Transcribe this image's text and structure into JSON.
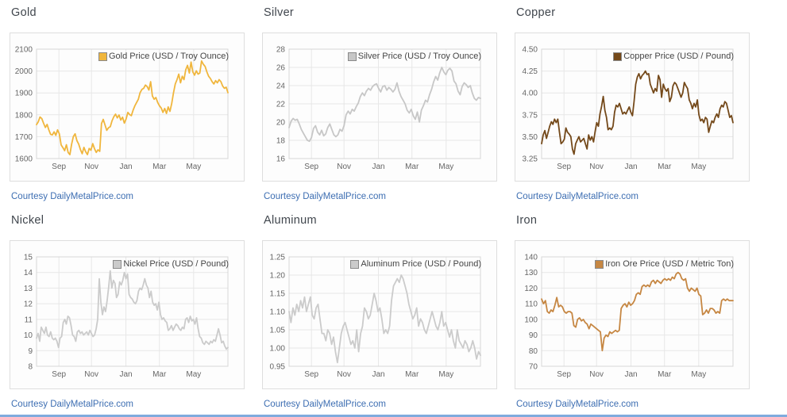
{
  "page": {
    "courtesy_label": "Courtesy DailyMetalPrice.com",
    "link_color": "#3d6eb2",
    "footer_bar_color": "#7fabdd"
  },
  "chart_data": [
    {
      "type": "line",
      "title": "Gold",
      "legend": "Gold Price (USD / Troy Ounce)",
      "color": "#f0b63d",
      "ylim": [
        1600,
        2100
      ],
      "ytick_labels": [
        "2100",
        "2000",
        "1900",
        "1800",
        "1700",
        "1600"
      ],
      "xticks": [
        "Sep",
        "Nov",
        "Jan",
        "Mar",
        "May"
      ],
      "xtick_pos": [
        0.117,
        0.287,
        0.467,
        0.642,
        0.821
      ],
      "grid": true,
      "legend_position": "top-right",
      "values": [
        1755,
        1768,
        1790,
        1783,
        1762,
        1742,
        1756,
        1731,
        1711,
        1708,
        1722,
        1706,
        1731,
        1713,
        1662,
        1650,
        1636,
        1663,
        1628,
        1618,
        1666,
        1701,
        1713,
        1681,
        1666,
        1641,
        1622,
        1651,
        1631,
        1618,
        1646,
        1638,
        1668,
        1645,
        1628,
        1640,
        1633,
        1760,
        1779,
        1754,
        1729,
        1741,
        1746,
        1773,
        1791,
        1803,
        1786,
        1799,
        1776,
        1789,
        1762,
        1781,
        1811,
        1801,
        1796,
        1821,
        1841,
        1856,
        1871,
        1901,
        1916,
        1921,
        1936,
        1929,
        1913,
        1951,
        1886,
        1871,
        1879,
        1856,
        1841,
        1831,
        1811,
        1829,
        1806,
        1836,
        1816,
        1851,
        1901,
        1941,
        1961,
        1986,
        1946,
        1976,
        1961,
        2006,
        2026,
        1991,
        2041,
        1996,
        1981,
        2001,
        1986,
        1991,
        2046,
        2031,
        2021,
        1996,
        1976,
        1966,
        1951,
        1941,
        1956,
        1946,
        1961,
        1951,
        1931,
        1921,
        1926,
        1901
      ]
    },
    {
      "type": "line",
      "title": "Silver",
      "legend": "Silver Price (USD / Troy Ounce)",
      "color": "#c7c7c7",
      "ylim": [
        16,
        28
      ],
      "ytick_labels": [
        "28",
        "26",
        "24",
        "22",
        "20",
        "18",
        "16"
      ],
      "xticks": [
        "Sep",
        "Nov",
        "Jan",
        "Mar",
        "May"
      ],
      "xtick_pos": [
        0.117,
        0.287,
        0.467,
        0.642,
        0.821
      ],
      "grid": true,
      "legend_position": "top-right",
      "values": [
        19.4,
        20.1,
        20.4,
        20.2,
        20.3,
        19.8,
        19.2,
        18.8,
        18.4,
        18.0,
        17.9,
        18.3,
        19.3,
        19.6,
        18.9,
        18.6,
        19.1,
        18.5,
        18.7,
        19.4,
        19.8,
        19.2,
        18.6,
        18.4,
        18.6,
        19.2,
        19.0,
        19.6,
        20.8,
        21.2,
        20.9,
        21.4,
        21.2,
        21.7,
        22.1,
        22.8,
        23.2,
        22.9,
        23.4,
        23.7,
        23.5,
        23.9,
        24.1,
        24.2,
        23.7,
        23.3,
        23.9,
        24.0,
        23.5,
        23.8,
        23.6,
        23.3,
        23.6,
        24.3,
        23.4,
        22.8,
        22.4,
        22.0,
        21.3,
        21.0,
        21.4,
        20.7,
        20.3,
        21.1,
        20.0,
        21.3,
        21.8,
        22.4,
        22.2,
        23.0,
        23.6,
        24.4,
        25.0,
        24.6,
        25.4,
        26.0,
        25.5,
        25.2,
        25.7,
        25.9,
        25.6,
        24.5,
        24.2,
        23.4,
        23.0,
        23.9,
        24.3,
        24.1,
        23.8,
        24.0,
        23.2,
        22.6,
        22.4,
        22.7,
        22.6
      ]
    },
    {
      "type": "line",
      "title": "Copper",
      "legend": "Copper Price (USD / Pound)",
      "color": "#74491a",
      "ylim": [
        3.25,
        4.5
      ],
      "ytick_labels": [
        "4.50",
        "4.25",
        "4.00",
        "3.75",
        "3.50",
        "3.25"
      ],
      "xticks": [
        "Sep",
        "Nov",
        "Jan",
        "Mar",
        "May"
      ],
      "xtick_pos": [
        0.117,
        0.287,
        0.467,
        0.642,
        0.821
      ],
      "grid": true,
      "legend_position": "top-right",
      "values": [
        3.42,
        3.52,
        3.57,
        3.48,
        3.55,
        3.62,
        3.67,
        3.64,
        3.7,
        3.66,
        3.7,
        3.55,
        3.42,
        3.44,
        3.47,
        3.6,
        3.55,
        3.53,
        3.5,
        3.36,
        3.3,
        3.42,
        3.46,
        3.5,
        3.44,
        3.46,
        3.48,
        3.42,
        3.36,
        3.52,
        3.46,
        3.5,
        3.44,
        3.56,
        3.66,
        3.62,
        3.76,
        3.85,
        3.96,
        3.8,
        3.72,
        3.58,
        3.6,
        3.58,
        3.62,
        3.78,
        3.86,
        3.84,
        3.88,
        3.82,
        3.76,
        3.78,
        3.76,
        3.8,
        3.84,
        3.78,
        3.74,
        3.9,
        4.1,
        4.18,
        4.22,
        4.16,
        4.2,
        4.22,
        4.25,
        4.21,
        4.22,
        4.1,
        4.05,
        4.0,
        4.05,
        4.02,
        4.2,
        4.15,
        3.95,
        4.1,
        4.05,
        4.02,
        4.05,
        3.9,
        3.95,
        4.08,
        4.12,
        4.1,
        4.05,
        4.0,
        3.95,
        4.0,
        4.12,
        4.08,
        4.05,
        3.92,
        3.88,
        3.82,
        3.88,
        3.84,
        3.92,
        3.75,
        3.68,
        3.7,
        3.66,
        3.72,
        3.7,
        3.55,
        3.62,
        3.68,
        3.66,
        3.72,
        3.76,
        3.72,
        3.82,
        3.86,
        3.84,
        3.9,
        3.88,
        3.8,
        3.72,
        3.74,
        3.66
      ]
    },
    {
      "type": "line",
      "title": "Nickel",
      "legend": "Nickel Price (USD / Pound)",
      "color": "#cbcbcb",
      "ylim": [
        8,
        15
      ],
      "ytick_labels": [
        "15",
        "14",
        "13",
        "12",
        "11",
        "10",
        "9",
        "8"
      ],
      "xticks": [
        "Sep",
        "Nov",
        "Jan",
        "Mar",
        "May"
      ],
      "xtick_pos": [
        0.117,
        0.287,
        0.467,
        0.642,
        0.821
      ],
      "grid": true,
      "legend_position": "top-right",
      "values": [
        9.8,
        10.1,
        9.6,
        10.5,
        10.3,
        10.1,
        10.5,
        10.0,
        9.9,
        10.2,
        9.8,
        9.7,
        9.8,
        9.6,
        9.2,
        9.8,
        9.9,
        10.8,
        11.0,
        10.7,
        11.2,
        11.1,
        10.6,
        10.0,
        9.9,
        9.6,
        10.2,
        10.3,
        10.1,
        10.2,
        10.0,
        10.1,
        10.2,
        10.0,
        10.3,
        10.1,
        9.9,
        10.0,
        10.4,
        11.0,
        13.6,
        12.1,
        11.3,
        11.8,
        11.5,
        12.2,
        13.1,
        14.1,
        13.0,
        13.5,
        13.3,
        12.4,
        12.6,
        13.4,
        13.2,
        13.5,
        14.0,
        13.6,
        13.9,
        12.6,
        12.4,
        12.3,
        12.1,
        12.0,
        12.2,
        12.8,
        13.0,
        12.9,
        13.2,
        13.6,
        13.2,
        13.0,
        12.4,
        12.8,
        12.1,
        11.9,
        12.0,
        11.6,
        12.1,
        11.3,
        11.0,
        11.1,
        10.9,
        10.8,
        10.3,
        10.4,
        10.6,
        10.3,
        10.5,
        10.7,
        10.6,
        10.4,
        10.3,
        10.5,
        10.4,
        11.0,
        11.1,
        10.8,
        11.2,
        10.9,
        11.0,
        10.7,
        11.1,
        10.4,
        9.9,
        9.8,
        9.5,
        9.4,
        9.6,
        9.5,
        9.4,
        9.6,
        9.5,
        9.7,
        9.6,
        10.0,
        10.4,
        10.0,
        9.5,
        9.6,
        9.3,
        9.1,
        9.2
      ]
    },
    {
      "type": "line",
      "title": "Aluminum",
      "legend": "Aluminum Price (USD / Pound)",
      "color": "#cbcbcb",
      "ylim": [
        0.95,
        1.25
      ],
      "ytick_labels": [
        "1.25",
        "1.20",
        "1.15",
        "1.10",
        "1.05",
        "1.00",
        "0.95"
      ],
      "xticks": [
        "Sep",
        "Nov",
        "Jan",
        "Mar",
        "May"
      ],
      "xtick_pos": [
        0.117,
        0.287,
        0.467,
        0.642,
        0.821
      ],
      "grid": true,
      "legend_position": "top-right",
      "values": [
        1.1,
        1.07,
        1.11,
        1.09,
        1.12,
        1.1,
        1.13,
        1.11,
        1.14,
        1.1,
        1.12,
        1.14,
        1.09,
        1.08,
        1.11,
        1.12,
        1.08,
        1.04,
        1.04,
        1.02,
        1.05,
        1.04,
        1.01,
        1.03,
        0.99,
        0.96,
        1.0,
        1.04,
        1.06,
        1.07,
        1.05,
        1.03,
        1.01,
        1.02,
        1.0,
        1.05,
        0.99,
        1.04,
        1.06,
        1.11,
        1.1,
        1.08,
        1.09,
        1.12,
        1.15,
        1.13,
        1.1,
        1.11,
        1.08,
        1.04,
        1.05,
        1.04,
        1.06,
        1.13,
        1.17,
        1.18,
        1.19,
        1.18,
        1.2,
        1.19,
        1.17,
        1.15,
        1.12,
        1.1,
        1.08,
        1.09,
        1.11,
        1.06,
        1.08,
        1.07,
        1.05,
        1.04,
        1.06,
        1.08,
        1.1,
        1.08,
        1.06,
        1.05,
        1.07,
        1.1,
        1.06,
        1.07,
        1.05,
        1.03,
        1.05,
        1.02,
        1.0,
        1.05,
        1.02,
        1.01,
        1.0,
        1.02,
        1.01,
        0.99,
        1.0,
        1.02,
        1.0,
        0.97,
        0.99,
        0.98
      ]
    },
    {
      "type": "line",
      "title": "Iron",
      "legend": "Iron Ore Price (USD / Metric Ton)",
      "color": "#c68743",
      "ylim": [
        70,
        140
      ],
      "ytick_labels": [
        "140",
        "130",
        "120",
        "110",
        "100",
        "90",
        "80",
        "70"
      ],
      "xticks": [
        "Sep",
        "Nov",
        "Jan",
        "Mar",
        "May"
      ],
      "xtick_pos": [
        0.117,
        0.287,
        0.467,
        0.642,
        0.821
      ],
      "grid": true,
      "legend_position": "top-right",
      "values": [
        113,
        110,
        112,
        105,
        104,
        106,
        105,
        109,
        114,
        108,
        109,
        108,
        105,
        104,
        105,
        105,
        104,
        96,
        95,
        100,
        101,
        99,
        100,
        98,
        97,
        94,
        97,
        96,
        95,
        94,
        93,
        92,
        80,
        88,
        90,
        89,
        92,
        91,
        92,
        93,
        92,
        93,
        107,
        109,
        110,
        108,
        111,
        109,
        110,
        112,
        116,
        117,
        116,
        121,
        122,
        121,
        122,
        121,
        124,
        125,
        123,
        125,
        124,
        123,
        125,
        126,
        125,
        126,
        125,
        127,
        126,
        129,
        130,
        129,
        126,
        125,
        126,
        120,
        118,
        120,
        119,
        118,
        120,
        116,
        115,
        103,
        104,
        106,
        104,
        107,
        107,
        106,
        104,
        105,
        104,
        112,
        113,
        112,
        113,
        112,
        112,
        112
      ]
    }
  ]
}
